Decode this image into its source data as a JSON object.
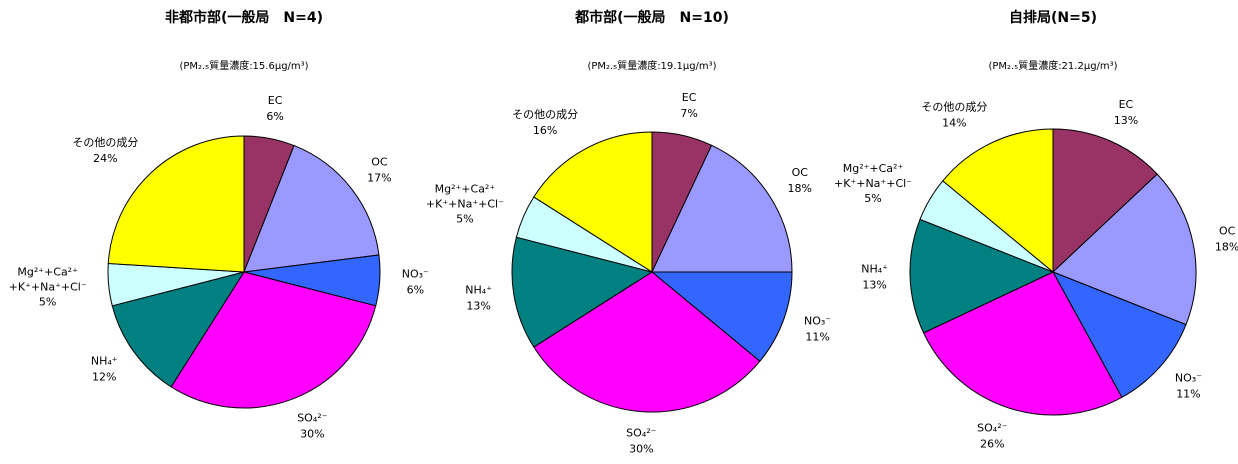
{
  "chart_data": [
    {
      "type": "pie",
      "title": "非都市部(一般局　N=4)",
      "subtitle": "(PM₂.₅質量濃度:15.6μg/m³)",
      "categories": [
        "EC",
        "OC",
        "NO₃⁻",
        "SO₄²⁻",
        "NH₄⁺",
        "Mg²⁺+Ca²⁺+K⁺+Na⁺+Cl⁻",
        "その他の成分"
      ],
      "values": [
        6,
        17,
        6,
        30,
        12,
        5,
        24
      ],
      "value_labels": [
        "6%",
        "17%",
        "6%",
        "30%",
        "12%",
        "5%",
        "24%"
      ],
      "colors": [
        "#993366",
        "#9999ff",
        "#3366ff",
        "#ff00ff",
        "#008080",
        "#ccffff",
        "#ffff00"
      ]
    },
    {
      "type": "pie",
      "title": "都市部(一般局　N=10)",
      "subtitle": "(PM₂.₅質量濃度:19.1μg/m³)",
      "categories": [
        "EC",
        "OC",
        "NO₃⁻",
        "SO₄²⁻",
        "NH₄⁺",
        "Mg²⁺+Ca²⁺+K⁺+Na⁺+Cl⁻",
        "その他の成分"
      ],
      "values": [
        7,
        18,
        11,
        30,
        13,
        5,
        16
      ],
      "value_labels": [
        "7%",
        "18%",
        "11%",
        "30%",
        "13%",
        "5%",
        "16%"
      ],
      "colors": [
        "#993366",
        "#9999ff",
        "#3366ff",
        "#ff00ff",
        "#008080",
        "#ccffff",
        "#ffff00"
      ]
    },
    {
      "type": "pie",
      "title": "自排局(N=5)",
      "subtitle": "(PM₂.₅質量濃度:21.2μg/m³)",
      "categories": [
        "EC",
        "OC",
        "NO₃⁻",
        "SO₄²⁻",
        "NH₄⁺",
        "Mg²⁺+Ca²⁺+K⁺+Na⁺+Cl⁻",
        "その他の成分"
      ],
      "values": [
        13,
        18,
        11,
        26,
        13,
        5,
        14
      ],
      "value_labels": [
        "13%",
        "18%",
        "11%",
        "26%",
        "13%",
        "5%",
        "14%"
      ],
      "colors": [
        "#993366",
        "#9999ff",
        "#3366ff",
        "#ff00ff",
        "#008080",
        "#ccffff",
        "#ffff00"
      ]
    }
  ]
}
